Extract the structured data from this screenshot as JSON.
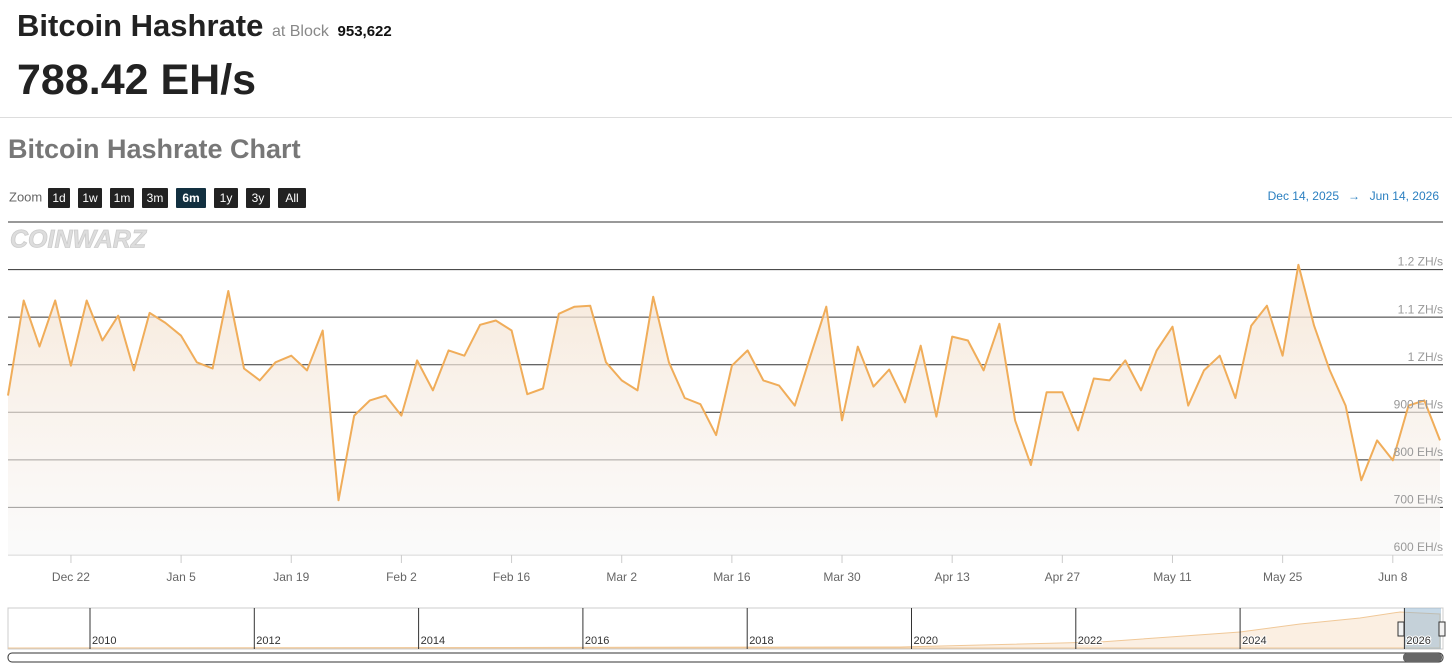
{
  "header": {
    "title": "Bitcoin Hashrate",
    "at_block": "at Block",
    "block": "953,622",
    "hashrate": "788.42 EH/s",
    "chart_title": "Bitcoin Hashrate Chart",
    "zoom_label": "Zoom",
    "zoom_buttons": [
      "1d",
      "1w",
      "1m",
      "3m",
      "6m",
      "1y",
      "3y",
      "All"
    ],
    "zoom_selected": "6m",
    "range_from": "Dec 14, 2025",
    "range_arrow": "→",
    "range_to": "Jun 14, 2026",
    "watermark": "COINWARZ"
  },
  "chart_data": {
    "type": "line",
    "x": [
      "2025-12-14",
      "2025-12-16",
      "2025-12-18",
      "2025-12-20",
      "2025-12-22",
      "2025-12-24",
      "2025-12-26",
      "2025-12-28",
      "2025-12-30",
      "2026-01-01",
      "2026-01-03",
      "2026-01-05",
      "2026-01-07",
      "2026-01-09",
      "2026-01-11",
      "2026-01-13",
      "2026-01-15",
      "2026-01-17",
      "2026-01-19",
      "2026-01-21",
      "2026-01-23",
      "2026-01-25",
      "2026-01-27",
      "2026-01-29",
      "2026-01-31",
      "2026-02-02",
      "2026-02-04",
      "2026-02-06",
      "2026-02-08",
      "2026-02-10",
      "2026-02-12",
      "2026-02-14",
      "2026-02-16",
      "2026-02-18",
      "2026-02-20",
      "2026-02-22",
      "2026-02-24",
      "2026-02-26",
      "2026-02-28",
      "2026-03-02",
      "2026-03-04",
      "2026-03-06",
      "2026-03-08",
      "2026-03-10",
      "2026-03-12",
      "2026-03-14",
      "2026-03-16",
      "2026-03-18",
      "2026-03-20",
      "2026-03-22",
      "2026-03-24",
      "2026-03-26",
      "2026-03-28",
      "2026-03-30",
      "2026-04-01",
      "2026-04-03",
      "2026-04-05",
      "2026-04-07",
      "2026-04-09",
      "2026-04-11",
      "2026-04-13",
      "2026-04-15",
      "2026-04-17",
      "2026-04-19",
      "2026-04-21",
      "2026-04-23",
      "2026-04-25",
      "2026-04-27",
      "2026-04-29",
      "2026-05-01",
      "2026-05-03",
      "2026-05-05",
      "2026-05-07",
      "2026-05-09",
      "2026-05-11",
      "2026-05-13",
      "2026-05-15",
      "2026-05-17",
      "2026-05-19",
      "2026-05-21",
      "2026-05-23",
      "2026-05-25",
      "2026-05-27",
      "2026-05-29",
      "2026-05-31",
      "2026-06-02",
      "2026-06-04",
      "2026-06-06",
      "2026-06-08",
      "2026-06-10",
      "2026-06-12",
      "2026-06-14"
    ],
    "series": [
      {
        "name": "Hashrate",
        "color": "#f0ad5a",
        "values": [
          935,
          1135,
          1038,
          1135,
          998,
          1135,
          1051,
          1103,
          988,
          1109,
          1088,
          1061,
          1005,
          992,
          1155,
          992,
          967,
          1005,
          1019,
          988,
          1072,
          715,
          893,
          925,
          935,
          893,
          1009,
          946,
          1030,
          1019,
          1084,
          1093,
          1072,
          938,
          950,
          1107,
          1122,
          1124,
          1005,
          967,
          946,
          1143,
          1005,
          930,
          917,
          852,
          998,
          1030,
          967,
          956,
          914,
          1019,
          1122,
          883,
          1038,
          954,
          990,
          921,
          1040,
          891,
          1059,
          1051,
          988,
          1086,
          883,
          789,
          942,
          942,
          862,
          971,
          967,
          1009,
          946,
          1030,
          1080,
          914,
          988,
          1019,
          930,
          1082,
          1124,
          1019,
          1210,
          1082,
          988,
          914,
          757,
          841,
          799,
          914,
          925,
          841
        ]
      }
    ],
    "xlim": [
      "2025-12-14",
      "2026-06-14"
    ],
    "xticks": [
      {
        "value": "2025-12-22",
        "label": "Dec 22"
      },
      {
        "value": "2026-01-05",
        "label": "Jan 5"
      },
      {
        "value": "2026-01-19",
        "label": "Jan 19"
      },
      {
        "value": "2026-02-02",
        "label": "Feb 2"
      },
      {
        "value": "2026-02-16",
        "label": "Feb 16"
      },
      {
        "value": "2026-03-02",
        "label": "Mar 2"
      },
      {
        "value": "2026-03-16",
        "label": "Mar 16"
      },
      {
        "value": "2026-03-30",
        "label": "Mar 30"
      },
      {
        "value": "2026-04-13",
        "label": "Apr 13"
      },
      {
        "value": "2026-04-27",
        "label": "Apr 27"
      },
      {
        "value": "2026-05-11",
        "label": "May 11"
      },
      {
        "value": "2026-05-25",
        "label": "May 25"
      },
      {
        "value": "2026-06-08",
        "label": "Jun 8"
      }
    ],
    "ylim": [
      600,
      1300
    ],
    "yticks": [
      {
        "value": 600,
        "label": "600 EH/s"
      },
      {
        "value": 700,
        "label": "700 EH/s"
      },
      {
        "value": 800,
        "label": "800 EH/s"
      },
      {
        "value": 900,
        "label": "900 EH/s"
      },
      {
        "value": 1000,
        "label": "1 ZH/s"
      },
      {
        "value": 1100,
        "label": "1.1 ZH/s"
      },
      {
        "value": 1200,
        "label": "1.2 ZH/s"
      }
    ],
    "grid": true
  },
  "navigator": {
    "years": [
      "2010",
      "2012",
      "2014",
      "2016",
      "2018",
      "2020",
      "2022",
      "2024",
      "2026"
    ]
  }
}
